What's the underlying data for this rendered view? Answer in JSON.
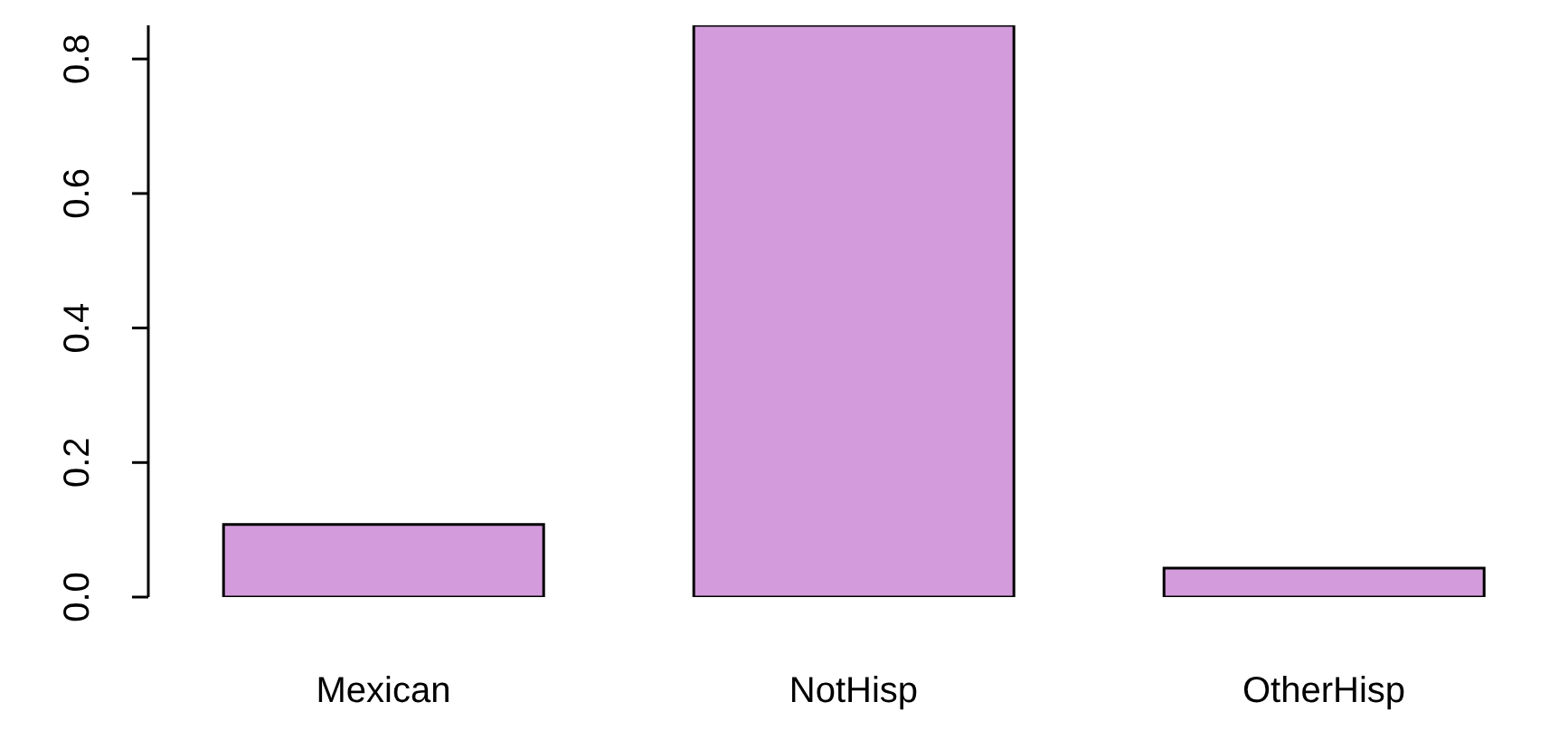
{
  "chart_data": {
    "type": "bar",
    "categories": [
      "Mexican",
      "NotHisp",
      "OtherHisp"
    ],
    "values": [
      0.108,
      0.85,
      0.043
    ],
    "color": "#d39bdc",
    "ylim": [
      0,
      0.85
    ],
    "yticks": [
      {
        "value": 0,
        "label": "0.0"
      },
      {
        "value": 0.2,
        "label": "0.2"
      },
      {
        "value": 0.4,
        "label": "0.4"
      },
      {
        "value": 0.6,
        "label": "0.6"
      },
      {
        "value": 0.8,
        "label": "0.8"
      }
    ],
    "grid": false,
    "legend": false
  }
}
